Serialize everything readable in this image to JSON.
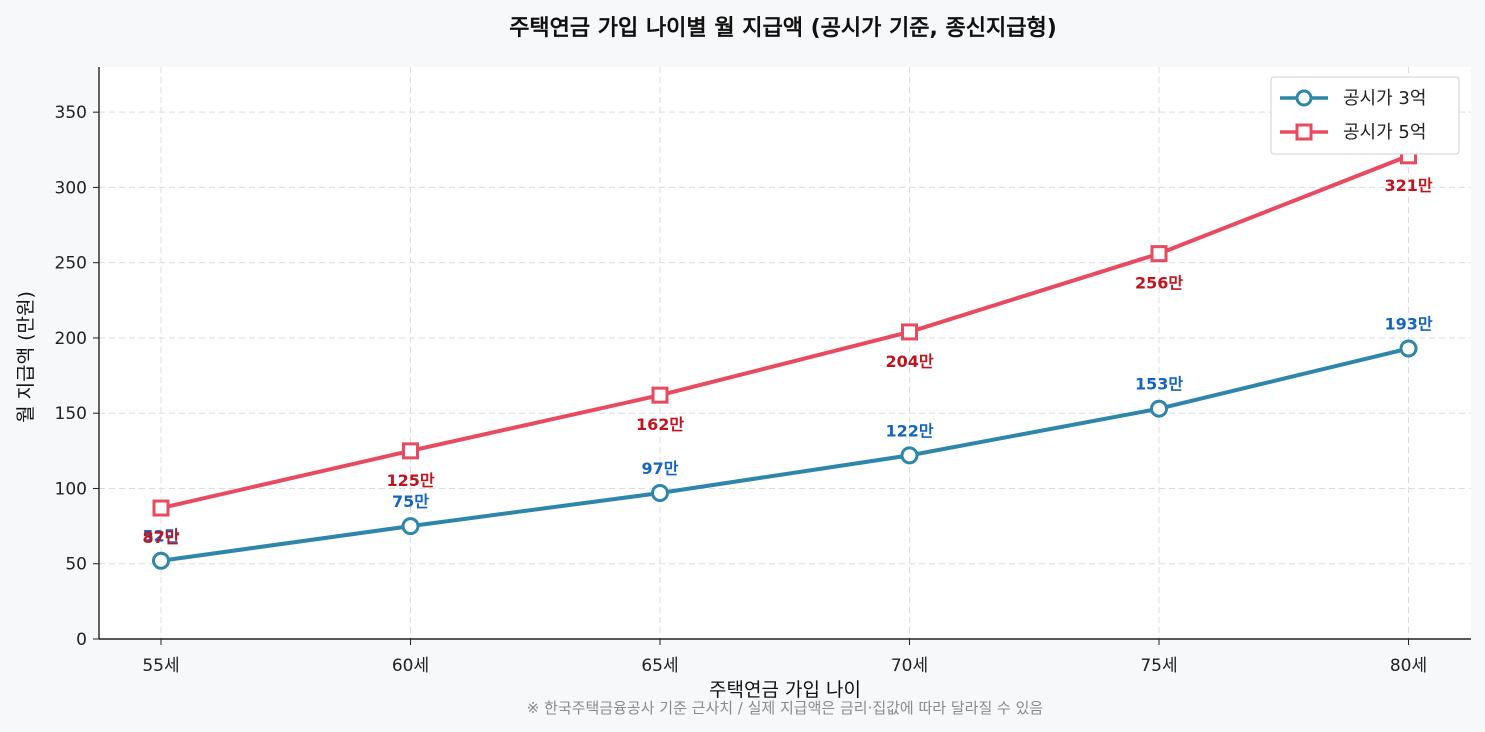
{
  "chart_data": {
    "type": "line",
    "title": "주택연금 가입 나이별 월 지급액 (공시가 기준, 종신지급형)",
    "xlabel": "주택연금 가입 나이",
    "ylabel": "월 지급액 (만원)",
    "categories": [
      "55세",
      "60세",
      "65세",
      "70세",
      "75세",
      "80세"
    ],
    "ylim": [
      0,
      380
    ],
    "yticks": [
      0,
      50,
      100,
      150,
      200,
      250,
      300,
      350
    ],
    "grid": true,
    "legend_position": "top-right",
    "series": [
      {
        "name": "공시가 3억",
        "values": [
          52,
          75,
          97,
          122,
          153,
          193
        ],
        "labels": [
          "52만",
          "75만",
          "97만",
          "122만",
          "153만",
          "193만"
        ],
        "color": "#2e86ab",
        "label_color": "#1565c0",
        "marker": "circle",
        "label_position": "above"
      },
      {
        "name": "공시가 5억",
        "values": [
          87,
          125,
          162,
          204,
          256,
          321
        ],
        "labels": [
          "87만",
          "125만",
          "162만",
          "204만",
          "256만",
          "321만"
        ],
        "color": "#e84a5f",
        "label_color": "#c0151f",
        "marker": "square",
        "label_position": "below"
      }
    ],
    "footnote": "※ 한국주택금융공사 기준 근사치 / 실제 지급액은 금리·집값에 따라 달라질 수 있음"
  }
}
